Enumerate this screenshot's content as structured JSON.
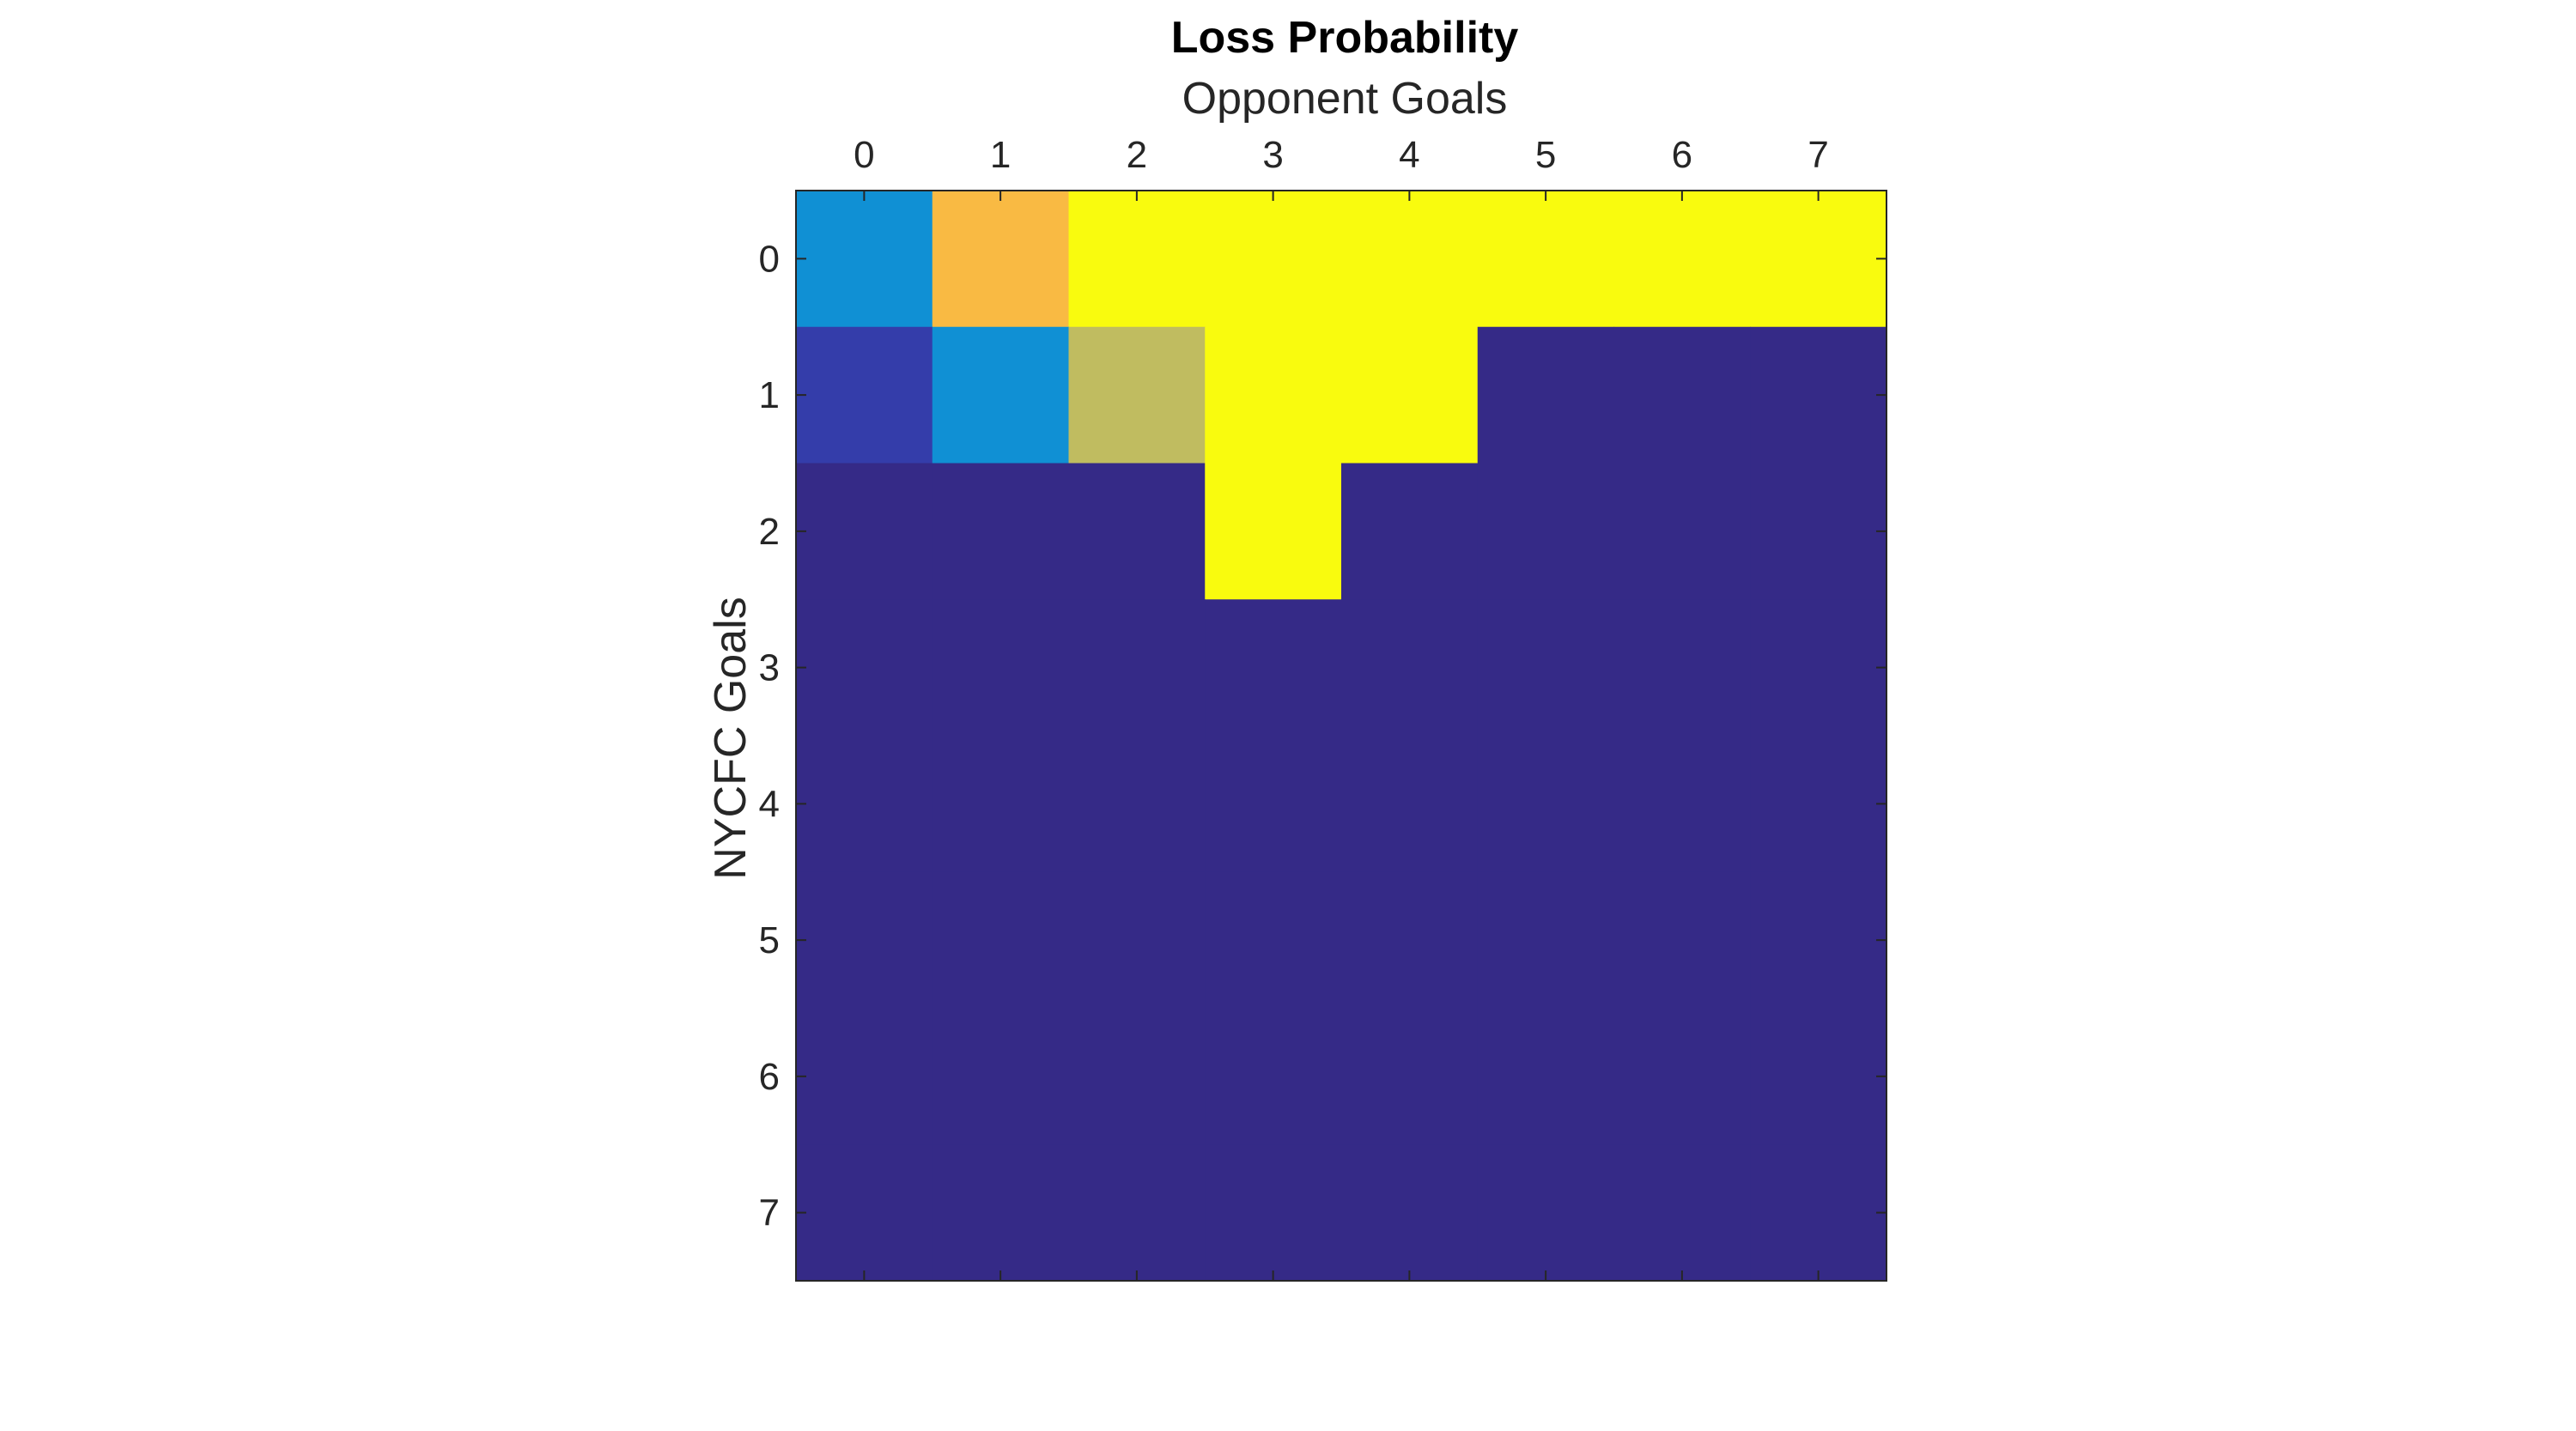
{
  "chart_data": {
    "type": "heatmap",
    "title": "Loss Probability",
    "xlabel": "Opponent Goals",
    "ylabel": "NYCFC Goals",
    "x_categories": [
      "0",
      "1",
      "2",
      "3",
      "4",
      "5",
      "6",
      "7"
    ],
    "y_categories": [
      "0",
      "1",
      "2",
      "3",
      "4",
      "5",
      "6",
      "7"
    ],
    "x_axis_location": "top",
    "y_direction": "top-to-bottom",
    "grid": false,
    "colorbar": false,
    "colormap": "parula",
    "clim": [
      0,
      1
    ],
    "values": [
      [
        0.33,
        0.85,
        1,
        1,
        1,
        1,
        1,
        1
      ],
      [
        0.05,
        0.33,
        0.75,
        1,
        1,
        0,
        0,
        0
      ],
      [
        0,
        0,
        0,
        1,
        0,
        0,
        0,
        0
      ],
      [
        0,
        0,
        0,
        0,
        0,
        0,
        0,
        0
      ],
      [
        0,
        0,
        0,
        0,
        0,
        0,
        0,
        0
      ],
      [
        0,
        0,
        0,
        0,
        0,
        0,
        0,
        0
      ],
      [
        0,
        0,
        0,
        0,
        0,
        0,
        0,
        0
      ],
      [
        0,
        0,
        0,
        0,
        0,
        0,
        0,
        0
      ]
    ]
  },
  "colors": {
    "background": "#ffffff",
    "tick_color": "#262626",
    "text_color": "#262626",
    "title_color": "#000000"
  }
}
